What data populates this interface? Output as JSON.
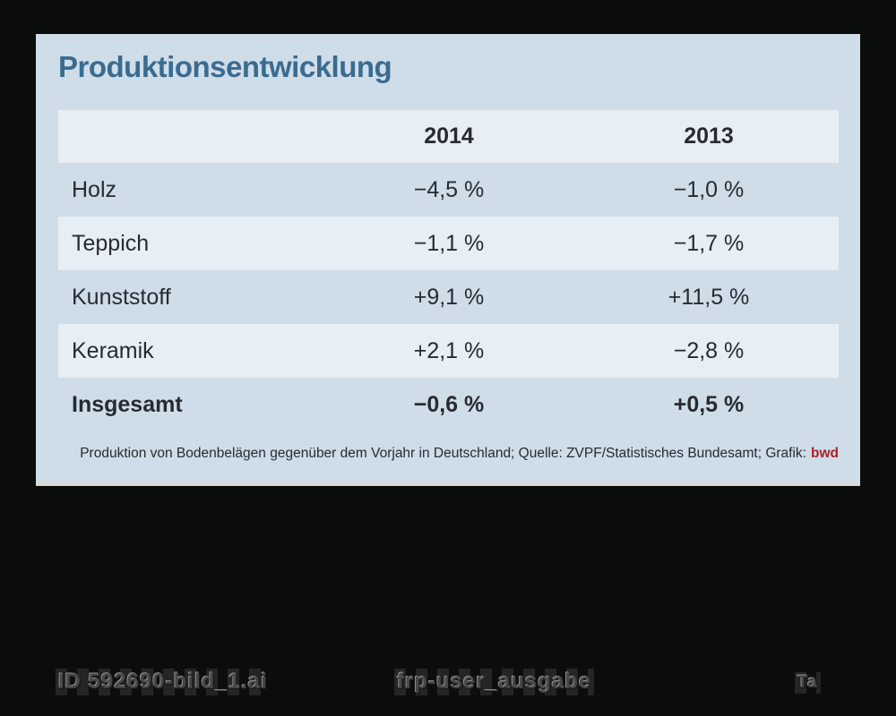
{
  "page": {
    "background_color": "#0b0d0d"
  },
  "card": {
    "title": "Produktionsentwicklung",
    "title_color": "#3a6b90",
    "background_color": "#cfdde8",
    "stripe_color": "#e7eef4",
    "caption_text": "Produktion von Bodenbelägen gegenüber dem Vorjahr in Deutschland; Quelle: ZVPF/Statistisches Bundesamt; Grafik:",
    "credit": "bwd",
    "credit_color": "#a8232a"
  },
  "chart_data": {
    "type": "table",
    "title": "Produktionsentwicklung",
    "columns": [
      "",
      "2014",
      "2013"
    ],
    "rows": [
      {
        "label": "Holz",
        "y2014": "−4,5 %",
        "y2013": "−1,0 %",
        "emphasis": false
      },
      {
        "label": "Teppich",
        "y2014": "−1,1 %",
        "y2013": "−1,7 %",
        "emphasis": false
      },
      {
        "label": "Kunststoff",
        "y2014": "+9,1 %",
        "y2013": "+11,5 %",
        "emphasis": false
      },
      {
        "label": "Keramik",
        "y2014": "+2,1 %",
        "y2013": "−2,8 %",
        "emphasis": false
      },
      {
        "label": "Insgesamt",
        "y2014": "−0,6 %",
        "y2013": "+0,5 %",
        "emphasis": true
      }
    ],
    "caption": "Produktion von Bodenbelägen gegenüber dem Vorjahr in Deutschland; Quelle: ZVPF/Statistisches Bundesamt; Grafik: bwd",
    "layout_hints": {
      "striped_rows": [
        "header",
        "Teppich",
        "Keramik"
      ],
      "values_unit": "%"
    }
  },
  "overlay": {
    "file_id": "ID 592690-bild_1.ai",
    "user_tag": "frp-user_ausgabe",
    "page_mark": "Ta"
  }
}
